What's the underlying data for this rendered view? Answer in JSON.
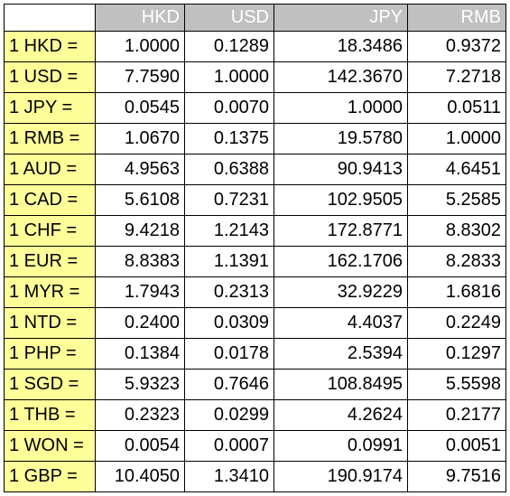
{
  "headers": [
    "HKD",
    "USD",
    "JPY",
    "RMB"
  ],
  "rows": [
    {
      "label": "1 HKD =",
      "values": [
        "1.0000",
        "0.1289",
        "18.3486",
        "0.9372"
      ]
    },
    {
      "label": "1 USD =",
      "values": [
        "7.7590",
        "1.0000",
        "142.3670",
        "7.2718"
      ]
    },
    {
      "label": "1 JPY =",
      "values": [
        "0.0545",
        "0.0070",
        "1.0000",
        "0.0511"
      ]
    },
    {
      "label": "1 RMB =",
      "values": [
        "1.0670",
        "0.1375",
        "19.5780",
        "1.0000"
      ]
    },
    {
      "label": "1 AUD =",
      "values": [
        "4.9563",
        "0.6388",
        "90.9413",
        "4.6451"
      ]
    },
    {
      "label": "1 CAD =",
      "values": [
        "5.6108",
        "0.7231",
        "102.9505",
        "5.2585"
      ]
    },
    {
      "label": "1 CHF =",
      "values": [
        "9.4218",
        "1.2143",
        "172.8771",
        "8.8302"
      ]
    },
    {
      "label": "1 EUR =",
      "values": [
        "8.8383",
        "1.1391",
        "162.1706",
        "8.2833"
      ]
    },
    {
      "label": "1 MYR =",
      "values": [
        "1.7943",
        "0.2313",
        "32.9229",
        "1.6816"
      ]
    },
    {
      "label": "1 NTD =",
      "values": [
        "0.2400",
        "0.0309",
        "4.4037",
        "0.2249"
      ]
    },
    {
      "label": "1 PHP =",
      "values": [
        "0.1384",
        "0.0178",
        "2.5394",
        "0.1297"
      ]
    },
    {
      "label": "1 SGD =",
      "values": [
        "5.9323",
        "0.7646",
        "108.8495",
        "5.5598"
      ]
    },
    {
      "label": "1 THB =",
      "values": [
        "0.2323",
        "0.0299",
        "4.2624",
        "0.2177"
      ]
    },
    {
      "label": "1 WON =",
      "values": [
        "0.0054",
        "0.0007",
        "0.0991",
        "0.0051"
      ]
    },
    {
      "label": "1 GBP =",
      "values": [
        "10.4050",
        "1.3410",
        "190.9174",
        "9.7516"
      ]
    }
  ],
  "colors": {
    "header_bg": "#c0c0c0",
    "header_text": "#ffffff",
    "rowlabel_bg": "#ffff99",
    "grid": "#000000"
  }
}
